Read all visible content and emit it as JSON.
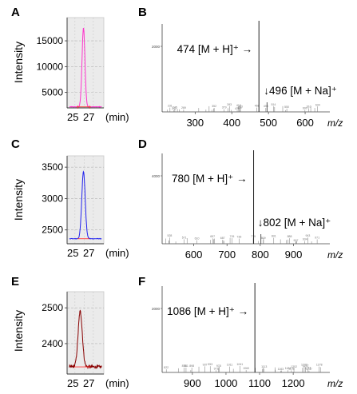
{
  "figure": {
    "chromatograms": [
      {
        "label": "A",
        "ylabel": "Intensity",
        "x_tick_labels": [
          "25",
          "27"
        ],
        "x_unit": "(min)",
        "y_ticks": [
          5000,
          10000,
          15000
        ],
        "y_tick_labels": [
          "5000",
          "10000",
          "15000"
        ],
        "ylim": [
          2000,
          19500
        ],
        "xlim": [
          23.6,
          29.2
        ],
        "trace_color": "#ff33cc",
        "baseline_color": "#ff3333",
        "peak": {
          "center": 26.1,
          "height": 17500,
          "base": 2200,
          "width": 0.22
        }
      },
      {
        "label": "C",
        "ylabel": "Intensity",
        "x_tick_labels": [
          "25",
          "27"
        ],
        "x_unit": "(min)",
        "y_ticks": [
          2500,
          3000,
          3500
        ],
        "y_tick_labels": [
          "2500",
          "3000",
          "3500"
        ],
        "ylim": [
          2280,
          3680
        ],
        "xlim": [
          23.6,
          29.2
        ],
        "trace_color": "#2222ee",
        "baseline_color": "#ff3333",
        "peak": {
          "center": 26.1,
          "height": 3430,
          "base": 2360,
          "width": 0.26
        }
      },
      {
        "label": "E",
        "ylabel": "Intensity",
        "x_tick_labels": [
          "25",
          "27"
        ],
        "x_unit": "(min)",
        "y_ticks": [
          2400,
          2500
        ],
        "y_tick_labels": [
          "2400",
          "2500"
        ],
        "ylim": [
          2315,
          2545
        ],
        "xlim": [
          23.6,
          29.2
        ],
        "trace_color": "#880000",
        "baseline_color": "#ff3333",
        "peak": {
          "center": 25.6,
          "height": 2490,
          "base": 2335,
          "width": 0.32
        }
      }
    ],
    "spectra": [
      {
        "label": "B",
        "x_tick_labels": [
          "300",
          "400",
          "500",
          "600"
        ],
        "x_ticks": [
          300,
          400,
          500,
          600
        ],
        "xlim": [
          210,
          650
        ],
        "x_unit": "m/z",
        "y_small_tick": "2000",
        "main_ion": {
          "mz": 474,
          "text": "474 [M + H]⁺ →"
        },
        "secondary_ion": {
          "mz": 496,
          "text": "↓496 [M + Na]⁺"
        }
      },
      {
        "label": "D",
        "x_tick_labels": [
          "600",
          "700",
          "800",
          "900"
        ],
        "x_ticks": [
          600,
          700,
          800,
          900
        ],
        "xlim": [
          505,
          990
        ],
        "x_unit": "m/z",
        "y_small_tick": "4000",
        "main_ion": {
          "mz": 780,
          "text": "780 [M + H]⁺ →"
        },
        "secondary_ion": {
          "mz": 802,
          "text": "↓802 [M + Na]⁺"
        }
      },
      {
        "label": "F",
        "x_tick_labels": [
          "900",
          "1000",
          "1100",
          "1200"
        ],
        "x_ticks": [
          900,
          1000,
          1100,
          1200
        ],
        "xlim": [
          810,
          1290
        ],
        "x_unit": "m/z",
        "y_small_tick": "2000",
        "main_ion": {
          "mz": 1086,
          "text": "1086 [M + H]⁺ →"
        },
        "secondary_ion": null
      }
    ]
  }
}
